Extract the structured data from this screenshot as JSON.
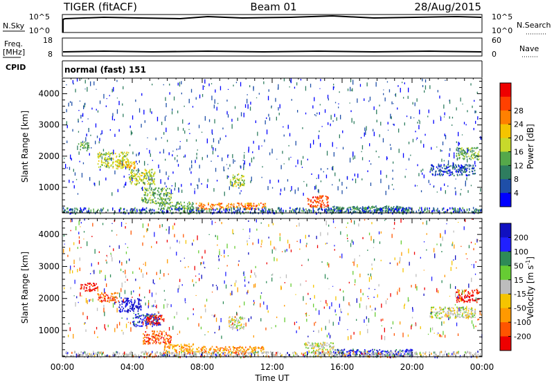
{
  "header": {
    "station": "TIGER (fitACF)",
    "beam": "Beam 01",
    "date": "28/Aug/2015"
  },
  "noise_panel": {
    "left_label": "N.Sky",
    "right_label": "N.Search",
    "left_ticks": [
      "10^5",
      "10^0"
    ],
    "right_ticks": [
      "10^5",
      "10^0"
    ]
  },
  "freq_panel": {
    "left_label_line1": "Freq.",
    "left_label_line2": "[MHz]",
    "right_label": "Nave",
    "left_ticks": [
      "18",
      "8"
    ],
    "right_ticks": [
      "60",
      "0"
    ]
  },
  "cpid_panel": {
    "label": "CPID",
    "mode": "normal (fast) 151"
  },
  "chart_data": [
    {
      "type": "heatmap",
      "title": "",
      "xlabel": "",
      "ylabel": "Slant Range [km]",
      "ylim": [
        180,
        4500
      ],
      "yticks": [
        1000,
        2000,
        3000,
        4000
      ],
      "xlim": [
        0,
        24
      ],
      "colorbar": {
        "label": "Power [dB]",
        "ticks": [
          "4",
          "8",
          "12",
          "16",
          "20",
          "24",
          "28"
        ],
        "colors": [
          "#0000ff",
          "#1f4fa8",
          "#2e7d5f",
          "#55a84a",
          "#c7d92b",
          "#f5c400",
          "#ff8000",
          "#ff4000",
          "#ee0000"
        ]
      },
      "regions": [
        {
          "t0": 0.9,
          "t1": 1.5,
          "r0": 2200,
          "r1": 2500,
          "level": 3
        },
        {
          "t0": 2.0,
          "t1": 3.8,
          "r0": 1650,
          "r1": 2150,
          "level": 4
        },
        {
          "t0": 3.0,
          "t1": 4.2,
          "r0": 1600,
          "r1": 1850,
          "level": 5
        },
        {
          "t0": 3.8,
          "t1": 5.3,
          "r0": 1100,
          "r1": 1600,
          "level": 4
        },
        {
          "t0": 4.5,
          "t1": 6.2,
          "r0": 500,
          "r1": 1000,
          "level": 3
        },
        {
          "t0": 5.5,
          "t1": 7.5,
          "r0": 300,
          "r1": 550,
          "level": 3
        },
        {
          "t0": 7.6,
          "t1": 11.6,
          "r0": 320,
          "r1": 520,
          "level": 6
        },
        {
          "t0": 9.5,
          "t1": 10.4,
          "r0": 1050,
          "r1": 1450,
          "level": 4
        },
        {
          "t0": 14.0,
          "t1": 15.2,
          "r0": 380,
          "r1": 750,
          "level": 7
        },
        {
          "t0": 15.0,
          "t1": 19.8,
          "r0": 200,
          "r1": 420,
          "level": 2
        },
        {
          "t0": 21.0,
          "t1": 23.6,
          "r0": 1400,
          "r1": 1750,
          "level": 1
        },
        {
          "t0": 22.5,
          "t1": 23.8,
          "r0": 1900,
          "r1": 2300,
          "level": 3
        }
      ]
    },
    {
      "type": "heatmap",
      "title": "",
      "xlabel": "Time UT",
      "ylabel": "Slant Range [km]",
      "ylim": [
        180,
        4500
      ],
      "yticks": [
        1000,
        2000,
        3000,
        4000
      ],
      "xlim": [
        0,
        24
      ],
      "xticks": [
        "00:00",
        "04:00",
        "08:00",
        "12:00",
        "16:00",
        "20:00",
        "00:00"
      ],
      "colorbar": {
        "label": "Velocity [m s^-1]",
        "ticks": [
          "200",
          "100",
          "50",
          "15",
          "-15",
          "-50",
          "-100",
          "-200"
        ],
        "colors": [
          "#1010c0",
          "#2020ff",
          "#2e8b57",
          "#66cc33",
          "#bdbdbd",
          "#f5c400",
          "#ff9900",
          "#ff5500",
          "#ee0000"
        ]
      },
      "regions": [
        {
          "t0": 1.0,
          "t1": 2.0,
          "r0": 2250,
          "r1": 2500,
          "level": 8
        },
        {
          "t0": 2.0,
          "t1": 3.2,
          "r0": 1900,
          "r1": 2200,
          "level": 7
        },
        {
          "t0": 3.2,
          "t1": 4.5,
          "r0": 1600,
          "r1": 2050,
          "level": 0
        },
        {
          "t0": 4.0,
          "t1": 5.6,
          "r0": 1150,
          "r1": 1550,
          "level": 1
        },
        {
          "t0": 4.8,
          "t1": 5.8,
          "r0": 1200,
          "r1": 1500,
          "level": 8
        },
        {
          "t0": 4.6,
          "t1": 6.2,
          "r0": 600,
          "r1": 1000,
          "level": 7
        },
        {
          "t0": 5.8,
          "t1": 7.5,
          "r0": 300,
          "r1": 600,
          "level": 6
        },
        {
          "t0": 7.6,
          "t1": 11.6,
          "r0": 320,
          "r1": 520,
          "level": 6
        },
        {
          "t0": 9.5,
          "t1": 10.4,
          "r0": 1050,
          "r1": 1450,
          "level": 4
        },
        {
          "t0": 13.8,
          "t1": 15.5,
          "r0": 200,
          "r1": 650,
          "level": 4
        },
        {
          "t0": 15.5,
          "t1": 20.0,
          "r0": 200,
          "r1": 430,
          "level": 1
        },
        {
          "t0": 21.0,
          "t1": 23.6,
          "r0": 1400,
          "r1": 1750,
          "level": 4
        },
        {
          "t0": 22.5,
          "t1": 23.8,
          "r0": 1900,
          "r1": 2300,
          "level": 8
        }
      ]
    }
  ]
}
